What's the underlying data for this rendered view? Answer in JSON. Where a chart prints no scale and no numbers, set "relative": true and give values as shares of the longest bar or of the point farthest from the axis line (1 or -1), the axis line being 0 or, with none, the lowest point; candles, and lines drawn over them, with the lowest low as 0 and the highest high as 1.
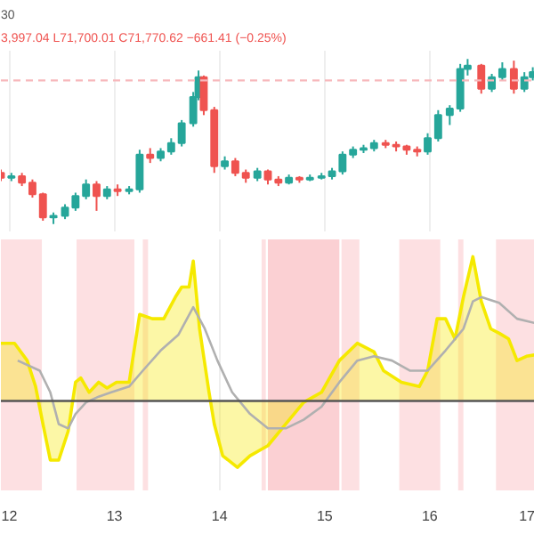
{
  "chart_data": [
    {
      "type": "candlestick",
      "relative": true,
      "annotations": [
        "30",
        "3,997.04 L71,700.01 C71,770.62 −661.41 (−0.25%)"
      ],
      "xlim": [
        11.92,
        17.0
      ],
      "xticks": [
        12,
        13,
        14,
        15,
        16,
        17
      ],
      "tick_labels": false,
      "grid": "x",
      "x": [
        11.92,
        12.02,
        12.12,
        12.22,
        12.32,
        12.42,
        12.53,
        12.63,
        12.73,
        12.83,
        12.93,
        13.03,
        13.14,
        13.24,
        13.34,
        13.44,
        13.54,
        13.64,
        13.75,
        13.8,
        13.85,
        13.95,
        14.05,
        14.15,
        14.25,
        14.36,
        14.46,
        14.56,
        14.66,
        14.76,
        14.86,
        14.97,
        15.07,
        15.17,
        15.27,
        15.37,
        15.47,
        15.58,
        15.68,
        15.78,
        15.88,
        15.98,
        16.08,
        16.19,
        16.29,
        16.36,
        16.49,
        16.59,
        16.69,
        16.8,
        16.9,
        16.98
      ],
      "ohlc": [
        [
          0.31,
          0.33,
          0.26,
          0.28
        ],
        [
          0.28,
          0.31,
          0.26,
          0.29
        ],
        [
          0.29,
          0.31,
          0.23,
          0.25
        ],
        [
          0.25,
          0.27,
          0.16,
          0.18
        ],
        [
          0.18,
          0.19,
          0.02,
          0.04
        ],
        [
          0.04,
          0.07,
          0.0,
          0.05
        ],
        [
          0.05,
          0.12,
          0.03,
          0.1
        ],
        [
          0.1,
          0.19,
          0.08,
          0.17
        ],
        [
          0.17,
          0.27,
          0.15,
          0.24
        ],
        [
          0.24,
          0.26,
          0.08,
          0.17
        ],
        [
          0.17,
          0.23,
          0.15,
          0.21
        ],
        [
          0.21,
          0.24,
          0.17,
          0.2
        ],
        [
          0.2,
          0.23,
          0.18,
          0.21
        ],
        [
          0.21,
          0.45,
          0.19,
          0.42
        ],
        [
          0.42,
          0.46,
          0.37,
          0.4
        ],
        [
          0.4,
          0.46,
          0.38,
          0.44
        ],
        [
          0.44,
          0.52,
          0.42,
          0.49
        ],
        [
          0.49,
          0.63,
          0.47,
          0.61
        ],
        [
          0.61,
          0.8,
          0.59,
          0.77
        ],
        [
          0.77,
          0.93,
          0.75,
          0.89
        ],
        [
          0.89,
          0.9,
          0.66,
          0.69
        ],
        [
          0.69,
          0.71,
          0.31,
          0.35
        ],
        [
          0.35,
          0.41,
          0.33,
          0.38
        ],
        [
          0.38,
          0.4,
          0.29,
          0.31
        ],
        [
          0.31,
          0.33,
          0.25,
          0.28
        ],
        [
          0.28,
          0.34,
          0.26,
          0.32
        ],
        [
          0.32,
          0.33,
          0.24,
          0.27
        ],
        [
          0.27,
          0.29,
          0.23,
          0.25
        ],
        [
          0.25,
          0.3,
          0.24,
          0.28
        ],
        [
          0.28,
          0.29,
          0.25,
          0.27
        ],
        [
          0.27,
          0.3,
          0.26,
          0.28
        ],
        [
          0.28,
          0.31,
          0.27,
          0.29
        ],
        [
          0.29,
          0.34,
          0.27,
          0.32
        ],
        [
          0.32,
          0.44,
          0.3,
          0.42
        ],
        [
          0.42,
          0.47,
          0.4,
          0.45
        ],
        [
          0.45,
          0.48,
          0.43,
          0.46
        ],
        [
          0.46,
          0.51,
          0.44,
          0.49
        ],
        [
          0.49,
          0.51,
          0.46,
          0.48
        ],
        [
          0.48,
          0.5,
          0.44,
          0.47
        ],
        [
          0.47,
          0.48,
          0.42,
          0.45
        ],
        [
          0.45,
          0.47,
          0.41,
          0.44
        ],
        [
          0.44,
          0.55,
          0.42,
          0.52
        ],
        [
          0.52,
          0.69,
          0.5,
          0.66
        ],
        [
          0.66,
          0.72,
          0.6,
          0.7
        ],
        [
          0.7,
          0.97,
          0.68,
          0.94
        ],
        [
          0.94,
          1.0,
          0.9,
          0.96
        ],
        [
          0.96,
          0.97,
          0.79,
          0.82
        ],
        [
          0.82,
          0.91,
          0.8,
          0.89
        ],
        [
          0.89,
          0.98,
          0.87,
          0.94
        ],
        [
          0.94,
          0.99,
          0.79,
          0.82
        ],
        [
          0.82,
          0.92,
          0.8,
          0.89
        ],
        [
          0.89,
          0.95,
          0.87,
          0.92
        ]
      ],
      "ref_lines": [
        {
          "axis": "y",
          "value": 0.87,
          "color": "#f7b7bb",
          "line_style": "dashed"
        }
      ]
    },
    {
      "type": "line",
      "relative": true,
      "xlim": [
        11.92,
        17.0
      ],
      "xticks": [
        12,
        13,
        14,
        15,
        16,
        17
      ],
      "tick_labels": "x",
      "grid": "x",
      "series": [
        {
          "type": "area",
          "color": "#f5e900",
          "x": [
            11.92,
            12.05,
            12.17,
            12.25,
            12.32,
            12.39,
            12.47,
            12.56,
            12.63,
            12.68,
            12.76,
            12.85,
            12.93,
            13.02,
            13.14,
            13.24,
            13.36,
            13.47,
            13.58,
            13.64,
            13.71,
            13.75,
            13.81,
            13.9,
            13.95,
            14.03,
            14.17,
            14.29,
            14.46,
            14.63,
            14.8,
            14.97,
            15.14,
            15.31,
            15.47,
            15.56,
            15.73,
            15.9,
            15.98,
            16.07,
            16.15,
            16.24,
            16.32,
            16.41,
            16.49,
            16.58,
            16.66,
            16.75,
            16.83,
            16.92,
            17.0
          ],
          "values": [
            0.4,
            0.4,
            0.28,
            0.1,
            -0.16,
            -0.41,
            -0.41,
            -0.21,
            0.13,
            0.16,
            0.06,
            0.13,
            0.09,
            0.13,
            0.13,
            0.6,
            0.57,
            0.57,
            0.72,
            0.79,
            0.79,
            0.97,
            0.5,
            0.06,
            -0.16,
            -0.38,
            -0.46,
            -0.38,
            -0.31,
            -0.16,
            -0.01,
            0.06,
            0.28,
            0.4,
            0.34,
            0.21,
            0.13,
            0.1,
            0.21,
            0.57,
            0.57,
            0.43,
            0.72,
            1.0,
            0.69,
            0.5,
            0.47,
            0.43,
            0.28,
            0.31,
            0.32
          ]
        },
        {
          "type": "line",
          "color": "#b0b0b0",
          "x": [
            12.08,
            12.29,
            12.39,
            12.47,
            12.56,
            12.63,
            12.73,
            12.85,
            12.97,
            13.14,
            13.27,
            13.44,
            13.61,
            13.75,
            13.86,
            13.98,
            14.12,
            14.29,
            14.46,
            14.63,
            14.8,
            14.97,
            15.14,
            15.31,
            15.47,
            15.64,
            15.81,
            15.98,
            16.15,
            16.32,
            16.41,
            16.49,
            16.66,
            16.83,
            17.0
          ],
          "values": [
            0.28,
            0.21,
            0.06,
            -0.16,
            -0.19,
            -0.09,
            -0.01,
            0.03,
            0.06,
            0.1,
            0.21,
            0.35,
            0.46,
            0.65,
            0.5,
            0.28,
            0.06,
            -0.09,
            -0.19,
            -0.19,
            -0.13,
            -0.04,
            0.13,
            0.28,
            0.31,
            0.28,
            0.21,
            0.21,
            0.35,
            0.5,
            0.69,
            0.72,
            0.68,
            0.57,
            0.54
          ]
        }
      ],
      "ref_lines": [
        {
          "axis": "y",
          "value": 0,
          "color": "#555555"
        }
      ],
      "bands": [
        {
          "axis": "x",
          "from": 11.92,
          "to": 12.31,
          "color": "#fde0e2"
        },
        {
          "axis": "x",
          "from": 12.64,
          "to": 13.19,
          "color": "#fde0e2"
        },
        {
          "axis": "x",
          "from": 13.27,
          "to": 13.32,
          "color": "#fde0e2"
        },
        {
          "axis": "x",
          "from": 14.4,
          "to": 14.44,
          "color": "#fde0e2"
        },
        {
          "axis": "x",
          "from": 14.46,
          "to": 15.14,
          "color": "#fbd0d3"
        },
        {
          "axis": "x",
          "from": 15.16,
          "to": 15.33,
          "color": "#fde0e2"
        },
        {
          "axis": "x",
          "from": 15.71,
          "to": 16.1,
          "color": "#fde0e2"
        },
        {
          "axis": "x",
          "from": 16.27,
          "to": 16.32,
          "color": "#fde0e2"
        },
        {
          "axis": "x",
          "from": 16.63,
          "to": 17.0,
          "color": "#fde0e2"
        }
      ]
    }
  ]
}
